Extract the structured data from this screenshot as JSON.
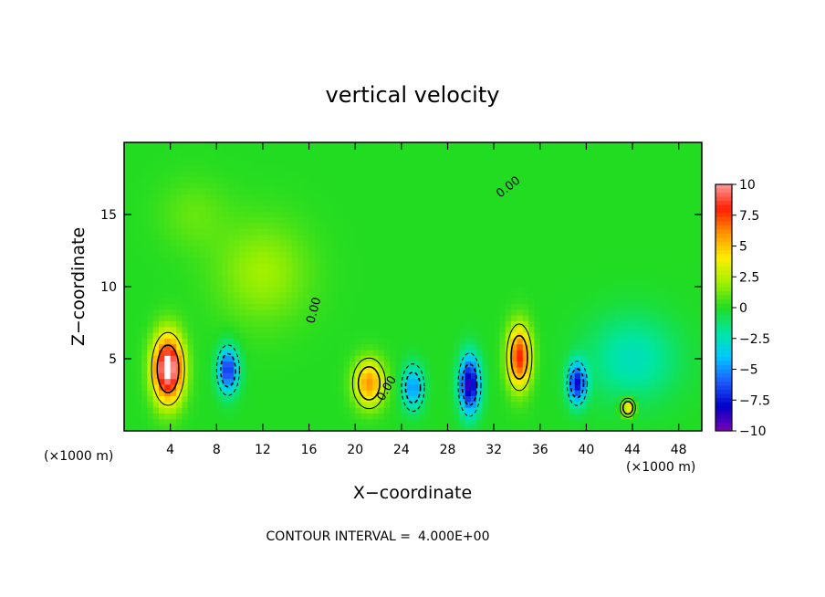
{
  "chart_data": {
    "type": "heatmap",
    "title": "vertical velocity",
    "xlabel": "X−coordinate",
    "ylabel": "Z−coordinate",
    "x_unit_left": "(×1000 m)",
    "x_unit_right": "(×1000 m)",
    "xlim": [
      0,
      50
    ],
    "ylim": [
      0,
      20
    ],
    "x_ticks": [
      4,
      8,
      12,
      16,
      20,
      24,
      28,
      32,
      36,
      40,
      44,
      48
    ],
    "y_ticks": [
      5,
      10,
      15
    ],
    "colorbar": {
      "range": [
        -10,
        10
      ],
      "ticks": [
        10,
        7.5,
        5,
        2.5,
        0,
        -2.5,
        -5,
        -7.5,
        -10
      ],
      "tick_labels": [
        "10",
        "7.5",
        "5",
        "2.5",
        "0",
        "−2.5",
        "−5",
        "−7.5",
        "−10"
      ],
      "stops": [
        "#7a00b4",
        "#0000c8",
        "#1e5cff",
        "#00c8ff",
        "#00e6a0",
        "#22dc22",
        "#a0f000",
        "#ffee00",
        "#ff9600",
        "#ff1e00",
        "#ff9a9a"
      ]
    },
    "features": [
      {
        "x": 3.8,
        "z": 4.3,
        "value": 11,
        "sx": 1.3,
        "sz": 2.3
      },
      {
        "x": 9.0,
        "z": 4.2,
        "value": -7,
        "sx": 0.9,
        "sz": 1.6
      },
      {
        "x": 21.2,
        "z": 3.3,
        "value": 6,
        "sx": 1.3,
        "sz": 1.6
      },
      {
        "x": 25.0,
        "z": 3.0,
        "value": -5,
        "sx": 0.9,
        "sz": 1.5
      },
      {
        "x": 29.9,
        "z": 3.2,
        "value": -9,
        "sx": 0.9,
        "sz": 2.0
      },
      {
        "x": 34.2,
        "z": 5.1,
        "value": 8,
        "sx": 1.0,
        "sz": 2.1
      },
      {
        "x": 39.2,
        "z": 3.3,
        "value": -7.5,
        "sx": 0.8,
        "sz": 1.4
      },
      {
        "x": 43.6,
        "z": 1.6,
        "value": 5,
        "sx": 0.6,
        "sz": 0.6
      },
      {
        "x": 12.0,
        "z": 11.0,
        "value": 2,
        "sx": 4.0,
        "sz": 3.5
      },
      {
        "x": 6.0,
        "z": 15.0,
        "value": 1,
        "sx": 3.0,
        "sz": 2.5
      },
      {
        "x": 44.0,
        "z": 5.0,
        "value": -2.5,
        "sx": 4.0,
        "sz": 3.0
      }
    ],
    "contour_labels": [
      "0.00",
      "0.00",
      "0.00"
    ],
    "contour_interval_label": "CONTOUR INTERVAL =",
    "contour_interval_value": "4.000E+00",
    "grid": false
  }
}
